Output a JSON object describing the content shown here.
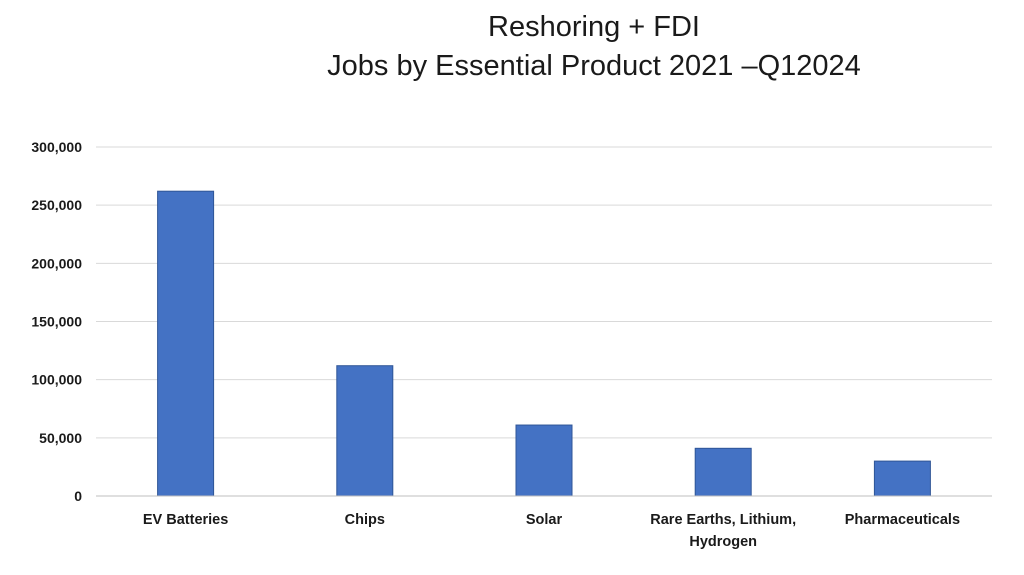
{
  "chart_data": {
    "type": "bar",
    "title": [
      "Reshoring + FDI",
      "Jobs by Essential Product 2021 –Q12024"
    ],
    "xlabel": "",
    "ylabel": "",
    "categories": [
      [
        "EV Batteries"
      ],
      [
        "Chips"
      ],
      [
        "Solar"
      ],
      [
        "Rare Earths, Lithium,",
        "Hydrogen"
      ],
      [
        "Pharmaceuticals"
      ]
    ],
    "values": [
      262000,
      112000,
      61000,
      41000,
      30000
    ],
    "ylim": [
      0,
      300000
    ],
    "yticks": [
      0,
      50000,
      100000,
      150000,
      200000,
      250000,
      300000
    ],
    "ytick_labels": [
      "0",
      "50,000",
      "100,000",
      "150,000",
      "200,000",
      "250,000",
      "300,000"
    ],
    "grid": true,
    "legend": "none",
    "colors": {
      "bar": "#4472C4",
      "bar_edge": "#2F5597",
      "grid": "#d9d9d9",
      "axis": "#bfbfbf",
      "text": "#1a1a1a"
    }
  }
}
